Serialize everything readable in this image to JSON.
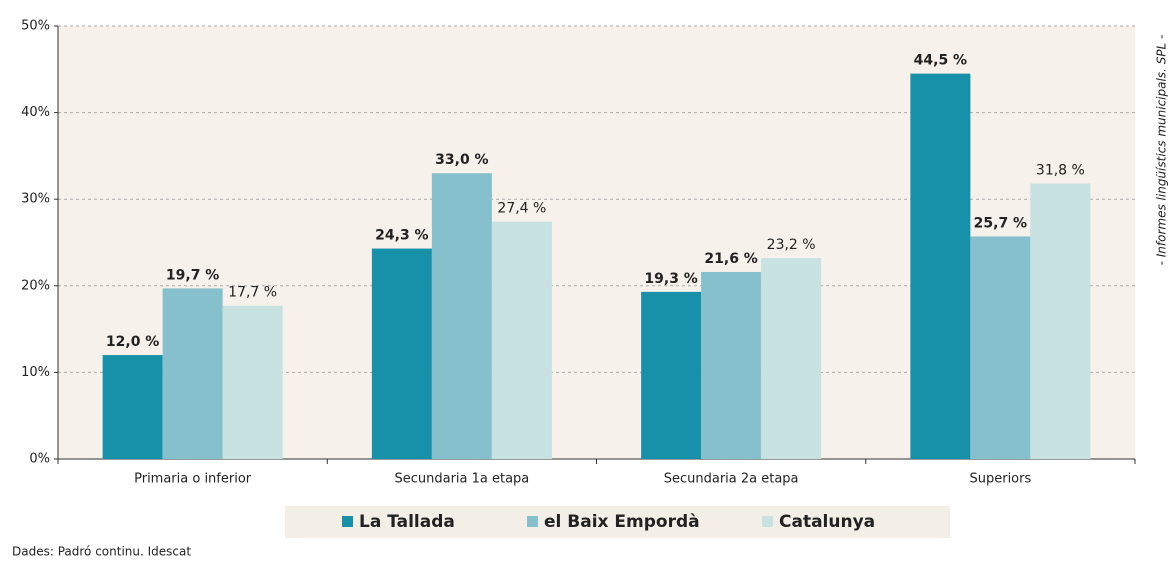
{
  "chart_data": {
    "type": "bar",
    "categories": [
      "Primaria o inferior",
      "Secundaria 1a etapa",
      "Secundaria 2a etapa",
      "Superiors"
    ],
    "series": [
      {
        "name": "La Tallada",
        "color": "#1790a9",
        "values": [
          12.0,
          24.3,
          19.3,
          44.5
        ],
        "value_labels": [
          "12,0 %",
          "24,3 %",
          "19,3 %",
          "44,5 %"
        ]
      },
      {
        "name": "el Baix Empordà",
        "color": "#85c0cc",
        "values": [
          19.7,
          33.0,
          21.6,
          25.7
        ],
        "value_labels": [
          "19,7 %",
          "33,0 %",
          "21,6 %",
          "25,7 %"
        ]
      },
      {
        "name": "Catalunya",
        "color": "#c8e1e1",
        "values": [
          17.7,
          27.4,
          23.2,
          31.8
        ],
        "value_labels": [
          "17,7 %",
          "27,4 %",
          "23,2 %",
          "31,8 %"
        ]
      }
    ],
    "ylim": [
      0,
      50
    ],
    "yticks": [
      {
        "value": 0,
        "label": "0%"
      },
      {
        "value": 10,
        "label": "10%"
      },
      {
        "value": 20,
        "label": "20%"
      },
      {
        "value": 30,
        "label": "30%"
      },
      {
        "value": 40,
        "label": "40%"
      },
      {
        "value": 50,
        "label": "50%"
      }
    ],
    "grid": true,
    "side_note": "- Informes lingüístics municipals. SPL -",
    "source": "Dades: Padró continu. Idescat"
  }
}
